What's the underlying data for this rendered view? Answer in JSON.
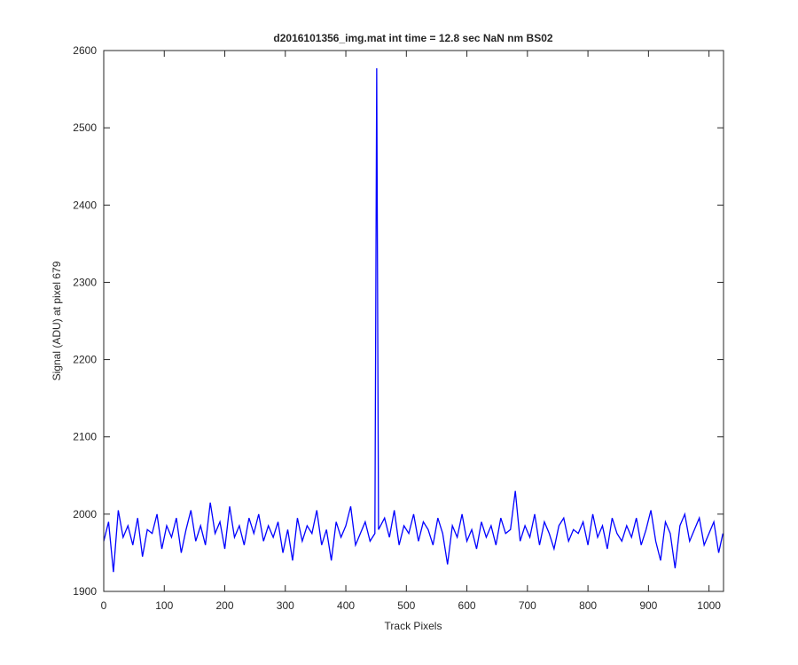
{
  "chart_data": {
    "type": "line",
    "title": "d2016101356_img.mat int time = 12.8 sec  NaN nm BS02",
    "x_label": "Track Pixels",
    "y_label": "Signal (ADU) at pixel 679",
    "xlim": [
      0,
      1024
    ],
    "ylim": [
      1900,
      2600
    ],
    "xticks": [
      0,
      100,
      200,
      300,
      400,
      500,
      600,
      700,
      800,
      900,
      1000
    ],
    "yticks": [
      1900,
      2000,
      2100,
      2200,
      2300,
      2400,
      2500,
      2600
    ],
    "grid": false,
    "x": [
      0,
      8,
      16,
      24,
      32,
      40,
      48,
      56,
      64,
      72,
      80,
      88,
      96,
      104,
      112,
      120,
      128,
      136,
      144,
      152,
      160,
      168,
      176,
      184,
      192,
      200,
      208,
      216,
      224,
      232,
      240,
      248,
      256,
      264,
      272,
      280,
      288,
      296,
      304,
      312,
      320,
      328,
      336,
      344,
      352,
      360,
      368,
      376,
      384,
      392,
      400,
      408,
      416,
      424,
      432,
      440,
      448,
      451,
      454,
      464,
      472,
      480,
      488,
      496,
      504,
      512,
      520,
      528,
      536,
      544,
      552,
      560,
      568,
      576,
      584,
      592,
      600,
      608,
      616,
      624,
      632,
      640,
      648,
      656,
      664,
      672,
      680,
      688,
      696,
      704,
      712,
      720,
      728,
      736,
      744,
      752,
      760,
      768,
      776,
      784,
      792,
      800,
      808,
      816,
      824,
      832,
      840,
      848,
      856,
      864,
      872,
      880,
      888,
      896,
      904,
      912,
      920,
      928,
      936,
      944,
      952,
      960,
      968,
      976,
      984,
      992,
      1000,
      1008,
      1016,
      1023
    ],
    "series": [
      {
        "name": "Signal",
        "color": "#0000ff",
        "values": [
          1965,
          1990,
          1925,
          2005,
          1970,
          1985,
          1960,
          1995,
          1945,
          1980,
          1975,
          2000,
          1955,
          1985,
          1970,
          1995,
          1950,
          1980,
          2005,
          1965,
          1985,
          1960,
          2015,
          1975,
          1990,
          1955,
          2010,
          1970,
          1985,
          1960,
          1995,
          1975,
          2000,
          1965,
          1985,
          1970,
          1990,
          1950,
          1980,
          1940,
          1995,
          1965,
          1985,
          1975,
          2005,
          1960,
          1980,
          1940,
          1990,
          1970,
          1985,
          2010,
          1960,
          1975,
          1990,
          1965,
          1975,
          2577,
          1980,
          1995,
          1970,
          2005,
          1960,
          1985,
          1975,
          2000,
          1965,
          1990,
          1980,
          1960,
          1995,
          1975,
          1935,
          1985,
          1970,
          2000,
          1965,
          1980,
          1955,
          1990,
          1970,
          1985,
          1960,
          1995,
          1975,
          1980,
          2030,
          1965,
          1985,
          1970,
          2000,
          1960,
          1990,
          1975,
          1955,
          1985,
          1995,
          1965,
          1980,
          1975,
          1990,
          1960,
          2000,
          1970,
          1985,
          1955,
          1995,
          1975,
          1965,
          1985,
          1970,
          1995,
          1960,
          1980,
          2005,
          1965,
          1940,
          1990,
          1975,
          1930,
          1985,
          2000,
          1965,
          1980,
          1995,
          1960,
          1975,
          1990,
          1950,
          1975
        ]
      }
    ]
  }
}
